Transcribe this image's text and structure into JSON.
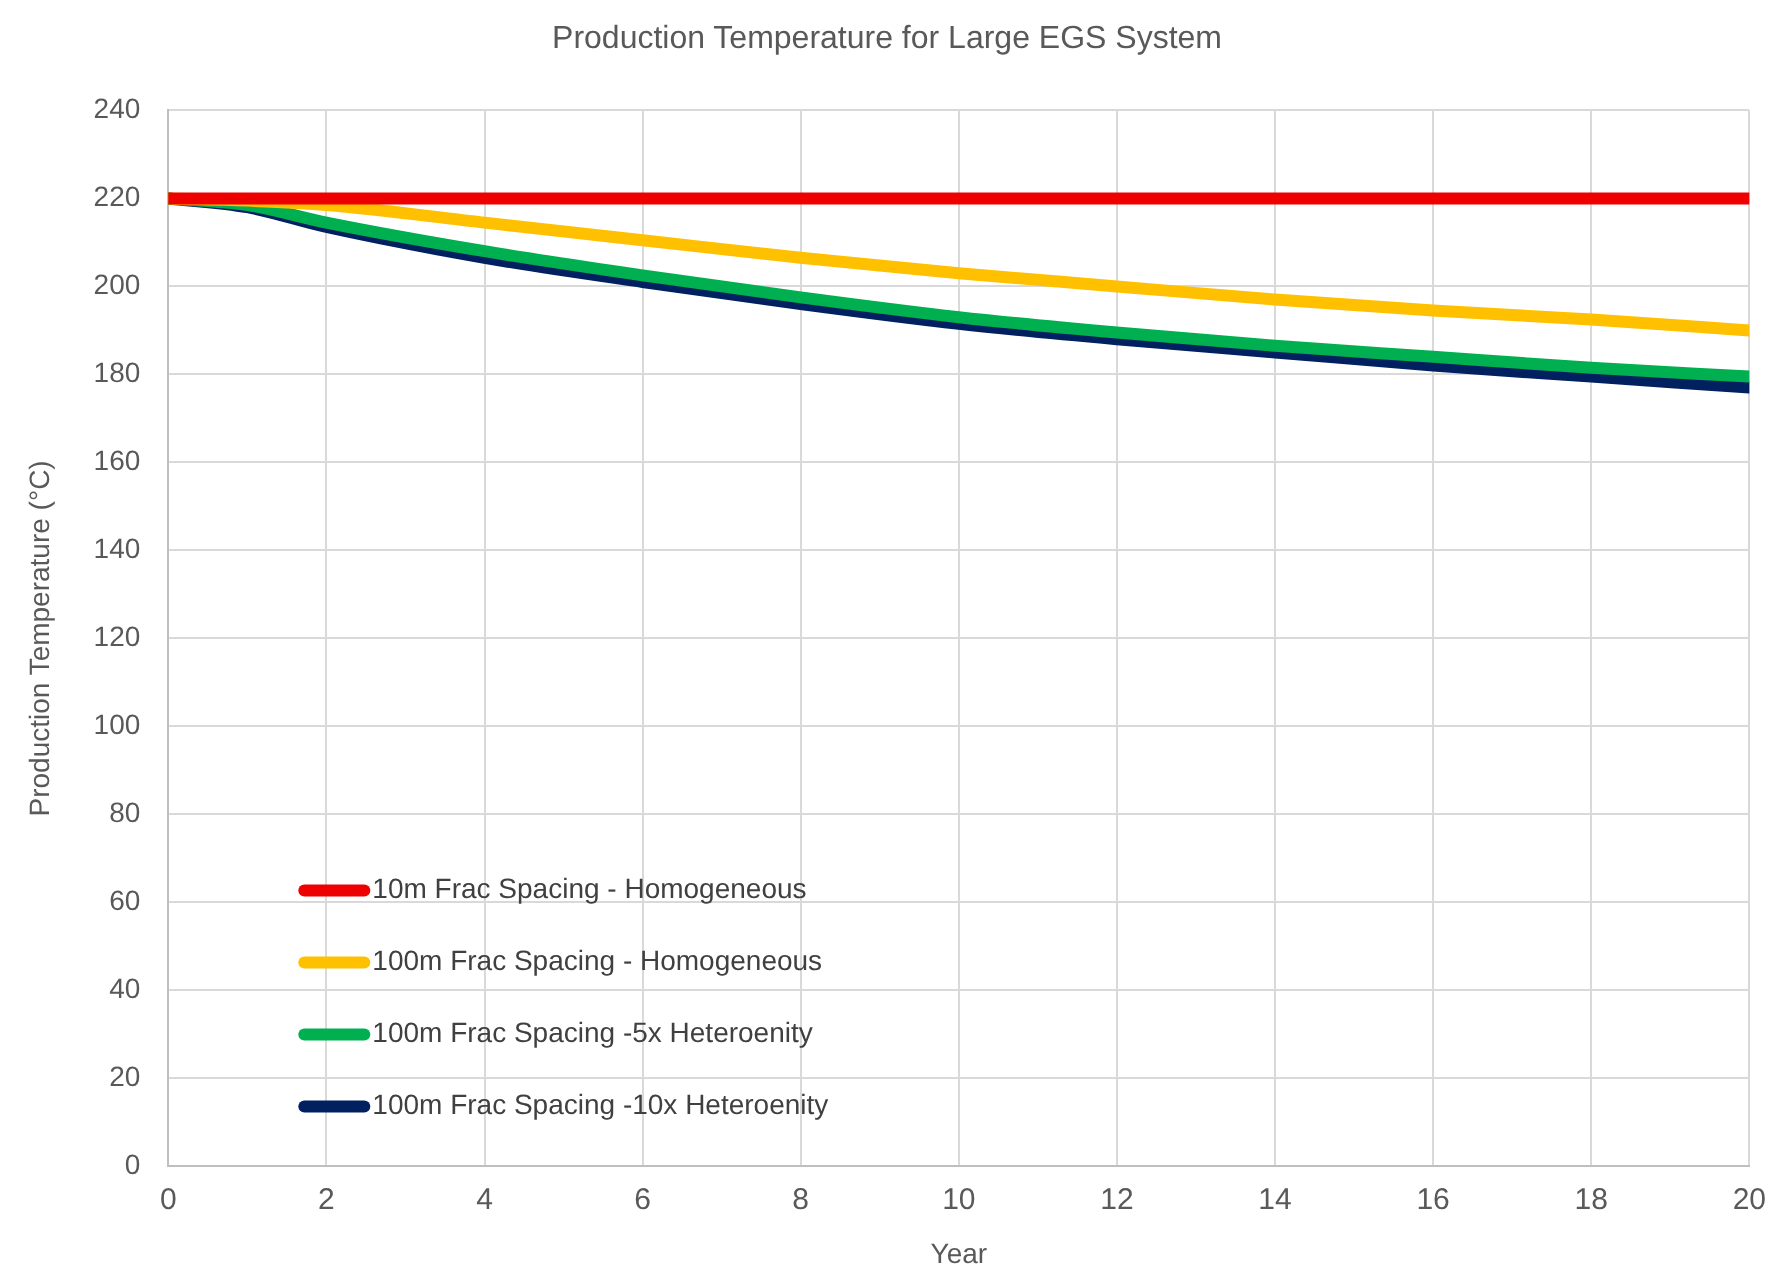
{
  "chart_data": {
    "type": "line",
    "title": "Production Temperature for Large EGS System",
    "xlabel": "Year",
    "ylabel": "Production Temperature (°C)",
    "x": [
      0,
      1,
      2,
      4,
      6,
      8,
      10,
      12,
      14,
      16,
      18,
      20
    ],
    "series": [
      {
        "name": "10m Frac Spacing - Homogeneous",
        "color": "#ee0000",
        "values": [
          220,
          220,
          220,
          220,
          220,
          220,
          220,
          220,
          220,
          220,
          220,
          220
        ]
      },
      {
        "name": "100m Frac Spacing - Homogeneous",
        "color": "#ffc000",
        "values": [
          220,
          219.5,
          218.5,
          214.5,
          210.5,
          206.5,
          203,
          200,
          197,
          194.5,
          192.5,
          190
        ]
      },
      {
        "name": "100m Frac Spacing -5x Heteroenity",
        "color": "#00b050",
        "values": [
          220,
          218.5,
          214.5,
          208,
          202.5,
          197.5,
          193,
          189.5,
          186.5,
          184,
          181.5,
          179.5
        ]
      },
      {
        "name": "100m Frac Spacing -10x Heteroenity",
        "color": "#002060",
        "values": [
          220,
          218,
          213.5,
          206.5,
          201,
          196,
          191.5,
          188,
          185,
          182,
          179.5,
          177
        ]
      }
    ],
    "xlim": [
      0,
      20
    ],
    "xticks": [
      0,
      2,
      4,
      6,
      8,
      10,
      12,
      14,
      16,
      18,
      20
    ],
    "ylim": [
      0,
      240
    ],
    "yticks": [
      0,
      20,
      40,
      60,
      80,
      100,
      120,
      140,
      160,
      180,
      200,
      220,
      240
    ],
    "grid": true,
    "legend": "bottom left",
    "marker": "none",
    "line_style": "solid"
  }
}
